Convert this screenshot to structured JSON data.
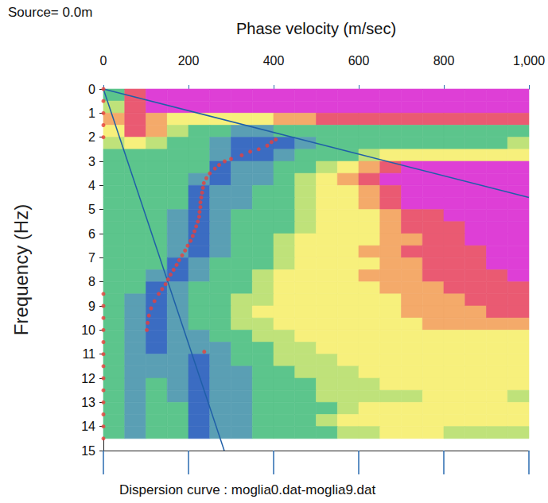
{
  "chart_data": {
    "type": "heatmap",
    "title": "Source= 0.0m",
    "subtitle": "Dispersion curve : moglia0.dat-moglia9.dat",
    "x_label": "Phase velocity (m/sec)",
    "y_label": "Frequency (Hz)",
    "xlim": [
      0,
      1000
    ],
    "xticks": [
      0,
      200,
      400,
      600,
      800,
      1000
    ],
    "ylim": [
      0,
      15
    ],
    "yticks": [
      0,
      1,
      2,
      3,
      4,
      5,
      6,
      7,
      8,
      9,
      10,
      11,
      12,
      13,
      14,
      15
    ],
    "grid": false,
    "cells": {
      "x_edges": [
        0,
        50,
        100,
        150,
        200,
        250,
        300,
        350,
        400,
        450,
        500,
        550,
        600,
        650,
        700,
        750,
        800,
        850,
        900,
        950,
        1000
      ],
      "y_edges": [
        0,
        0.5,
        1,
        1.5,
        2,
        2.5,
        3,
        3.5,
        4,
        4.5,
        5,
        5.5,
        6,
        6.5,
        7,
        7.5,
        8,
        8.5,
        9,
        9.5,
        10,
        10.5,
        11,
        11.5,
        12,
        12.5,
        13,
        13.5,
        14,
        14.5
      ],
      "values": [
        [
          2,
          6,
          7,
          7,
          7,
          7,
          7,
          7,
          7,
          7,
          7,
          7,
          7,
          7,
          7,
          7,
          7,
          7,
          7,
          7
        ],
        [
          3,
          6,
          7,
          7,
          7,
          7,
          7,
          7,
          7,
          7,
          7,
          7,
          7,
          7,
          7,
          7,
          7,
          7,
          7,
          7
        ],
        [
          5,
          6,
          5,
          4,
          4,
          4,
          4,
          4,
          5,
          5,
          6,
          6,
          6,
          6,
          6,
          6,
          6,
          6,
          6,
          6
        ],
        [
          4,
          6,
          5,
          3,
          2,
          2,
          1,
          1,
          2,
          2,
          2,
          2,
          2,
          2,
          2,
          2,
          2,
          2,
          2,
          2
        ],
        [
          3,
          4,
          3,
          2,
          2,
          1,
          0,
          0,
          0,
          1,
          2,
          2,
          2,
          2,
          2,
          2,
          2,
          2,
          2,
          3
        ],
        [
          2,
          2,
          2,
          2,
          2,
          1,
          0,
          0,
          1,
          2,
          2,
          2,
          3,
          4,
          4,
          4,
          4,
          4,
          4,
          4
        ],
        [
          2,
          2,
          2,
          2,
          2,
          0,
          1,
          1,
          2,
          2,
          3,
          4,
          5,
          6,
          7,
          7,
          7,
          7,
          7,
          7
        ],
        [
          2,
          2,
          2,
          2,
          1,
          0,
          1,
          1,
          2,
          3,
          4,
          5,
          6,
          7,
          7,
          7,
          7,
          7,
          7,
          7
        ],
        [
          2,
          2,
          2,
          2,
          0,
          1,
          1,
          2,
          2,
          3,
          4,
          4,
          5,
          6,
          7,
          7,
          7,
          7,
          7,
          7
        ],
        [
          2,
          2,
          2,
          2,
          0,
          1,
          1,
          2,
          2,
          3,
          4,
          4,
          5,
          6,
          7,
          7,
          7,
          7,
          7,
          7
        ],
        [
          2,
          2,
          2,
          1,
          0,
          1,
          2,
          2,
          2,
          3,
          4,
          4,
          4,
          5,
          6,
          6,
          7,
          7,
          7,
          7
        ],
        [
          2,
          2,
          2,
          1,
          0,
          1,
          2,
          2,
          2,
          3,
          4,
          4,
          4,
          5,
          6,
          6,
          6,
          7,
          7,
          7
        ],
        [
          2,
          2,
          2,
          1,
          0,
          1,
          2,
          2,
          3,
          4,
          4,
          4,
          4,
          5,
          5,
          6,
          6,
          7,
          7,
          7
        ],
        [
          2,
          2,
          2,
          1,
          0,
          1,
          2,
          2,
          3,
          4,
          4,
          4,
          5,
          5,
          6,
          6,
          6,
          6,
          7,
          7
        ],
        [
          2,
          2,
          2,
          0,
          1,
          2,
          2,
          2,
          3,
          4,
          4,
          4,
          4,
          5,
          5,
          6,
          6,
          6,
          7,
          7
        ],
        [
          2,
          2,
          1,
          0,
          1,
          2,
          2,
          3,
          4,
          4,
          4,
          4,
          5,
          5,
          5,
          6,
          6,
          6,
          6,
          7
        ],
        [
          2,
          2,
          0,
          1,
          2,
          2,
          2,
          3,
          4,
          4,
          4,
          4,
          4,
          5,
          5,
          5,
          6,
          6,
          6,
          6
        ],
        [
          2,
          1,
          0,
          1,
          2,
          2,
          3,
          3,
          4,
          4,
          4,
          4,
          4,
          4,
          5,
          5,
          5,
          6,
          6,
          6
        ],
        [
          2,
          1,
          0,
          1,
          2,
          2,
          3,
          4,
          4,
          4,
          4,
          4,
          4,
          4,
          5,
          5,
          5,
          5,
          6,
          6
        ],
        [
          2,
          1,
          0,
          1,
          2,
          2,
          3,
          3,
          4,
          4,
          4,
          4,
          4,
          4,
          4,
          5,
          5,
          5,
          5,
          5
        ],
        [
          2,
          1,
          0,
          1,
          1,
          2,
          2,
          3,
          3,
          4,
          4,
          4,
          4,
          4,
          4,
          4,
          4,
          4,
          4,
          4
        ],
        [
          2,
          1,
          0,
          1,
          1,
          1,
          2,
          2,
          3,
          3,
          4,
          4,
          4,
          4,
          4,
          4,
          4,
          4,
          4,
          4
        ],
        [
          2,
          1,
          1,
          1,
          0,
          1,
          2,
          2,
          3,
          3,
          3,
          4,
          4,
          4,
          4,
          4,
          4,
          4,
          4,
          4
        ],
        [
          2,
          1,
          1,
          1,
          0,
          1,
          1,
          2,
          2,
          3,
          3,
          3,
          4,
          4,
          4,
          4,
          4,
          4,
          4,
          4
        ],
        [
          2,
          1,
          2,
          1,
          0,
          1,
          1,
          2,
          2,
          2,
          3,
          3,
          3,
          4,
          4,
          4,
          4,
          4,
          4,
          4
        ],
        [
          2,
          1,
          2,
          1,
          0,
          1,
          1,
          2,
          2,
          2,
          3,
          3,
          3,
          3,
          3,
          4,
          4,
          4,
          4,
          3
        ],
        [
          2,
          1,
          2,
          2,
          0,
          1,
          1,
          2,
          2,
          2,
          2,
          3,
          4,
          4,
          4,
          4,
          4,
          4,
          4,
          4
        ],
        [
          2,
          1,
          2,
          2,
          0,
          1,
          1,
          2,
          2,
          2,
          3,
          4,
          4,
          4,
          4,
          4,
          4,
          4,
          4,
          4
        ],
        [
          2,
          1,
          2,
          2,
          0,
          1,
          1,
          2,
          2,
          2,
          2,
          3,
          3,
          4,
          4,
          4,
          3,
          3,
          3,
          3
        ]
      ]
    },
    "color_range": [
      0,
      7
    ],
    "colors": [
      "#3b6cc2",
      "#5a9fb4",
      "#5cc58c",
      "#bfe27a",
      "#f7f07c",
      "#f4aa6a",
      "#ea5a72",
      "#de3fd6"
    ],
    "series": [
      {
        "type": "line",
        "color": "#1f5fa8",
        "x": [
          0,
          1000
        ],
        "values": [
          0,
          4.5
        ]
      },
      {
        "type": "line",
        "color": "#1f5fa8",
        "x": [
          0,
          284
        ],
        "values": [
          0,
          15
        ]
      },
      {
        "type": "scatter",
        "color": "#e8403c",
        "x": [
          0,
          0,
          0,
          0,
          0,
          405,
          395,
          385,
          365,
          345,
          325,
          300,
          285,
          272,
          262,
          250,
          242,
          236,
          234,
          232,
          230,
          228,
          228,
          226,
          225,
          222,
          218,
          214,
          210,
          205,
          198,
          192,
          185,
          178,
          172,
          165,
          158,
          152,
          146,
          138,
          130,
          120,
          112,
          107,
          104,
          102,
          237,
          0,
          0,
          0,
          0,
          0,
          0,
          0,
          0,
          0,
          0,
          0,
          0,
          0
        ],
        "values": [
          0,
          0.5,
          1,
          1.5,
          2,
          2.1,
          2.2,
          2.35,
          2.5,
          2.6,
          2.75,
          2.9,
          3.0,
          3.15,
          3.3,
          3.5,
          3.7,
          3.9,
          4.1,
          4.3,
          4.5,
          4.7,
          4.9,
          5.1,
          5.3,
          5.5,
          5.7,
          5.9,
          6.1,
          6.3,
          6.5,
          6.7,
          6.9,
          7.1,
          7.3,
          7.5,
          7.7,
          7.9,
          8.1,
          8.3,
          8.5,
          8.8,
          9.1,
          9.4,
          9.7,
          10.0,
          10.9,
          8.5,
          9,
          9.5,
          10,
          10.5,
          11,
          11.5,
          12,
          12.5,
          13,
          13.5,
          14,
          14.5
        ]
      }
    ]
  }
}
